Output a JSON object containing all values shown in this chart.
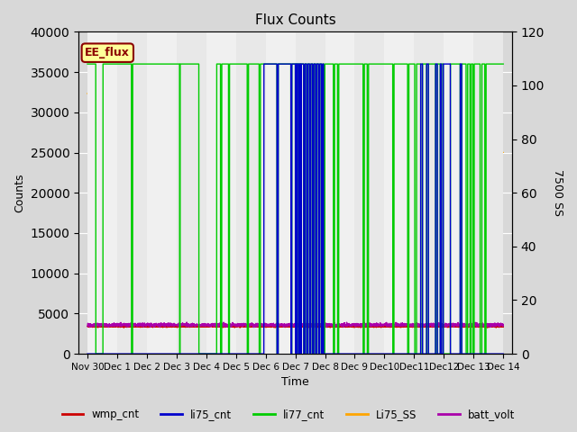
{
  "title": "Flux Counts",
  "ylabel_left": "Counts",
  "ylabel_right": "7500 SS",
  "xlabel": "Time",
  "left_ylim": [
    0,
    40000
  ],
  "right_ylim": [
    0,
    120
  ],
  "left_yticks": [
    0,
    5000,
    10000,
    15000,
    20000,
    25000,
    30000,
    35000,
    40000
  ],
  "right_yticks": [
    0,
    20,
    40,
    60,
    80,
    100,
    120
  ],
  "bg_color": "#d8d8d8",
  "plot_bg_color": "#e8e8e8",
  "strip_color": "#f0f0f0",
  "annotation_text": "EE_flux",
  "annotation_color": "#8b0000",
  "annotation_bg": "#ffff99",
  "series": {
    "wmp_cnt": {
      "color": "#cc0000",
      "lw": 1.0
    },
    "li75_cnt": {
      "color": "#0000cc",
      "lw": 1.0
    },
    "li77_cnt": {
      "color": "#00cc00",
      "lw": 1.0
    },
    "Li75_SS": {
      "color": "#ffa500",
      "lw": 1.0
    },
    "batt_volt": {
      "color": "#aa00aa",
      "lw": 1.0
    }
  },
  "xtick_labels": [
    "Nov 30",
    "Dec 1",
    "Dec 2",
    "Dec 3",
    "Dec 4",
    "Dec 5",
    "Dec 6",
    "Dec 7",
    "Dec 8",
    "Dec 9",
    "Dec10",
    "Dec11",
    "Dec12",
    "Dec 13",
    "Dec 14"
  ],
  "high_val": 36000,
  "wmp_val": 3400,
  "batt_val": 3600,
  "batt_noise": 100,
  "wmp_noise": 50
}
